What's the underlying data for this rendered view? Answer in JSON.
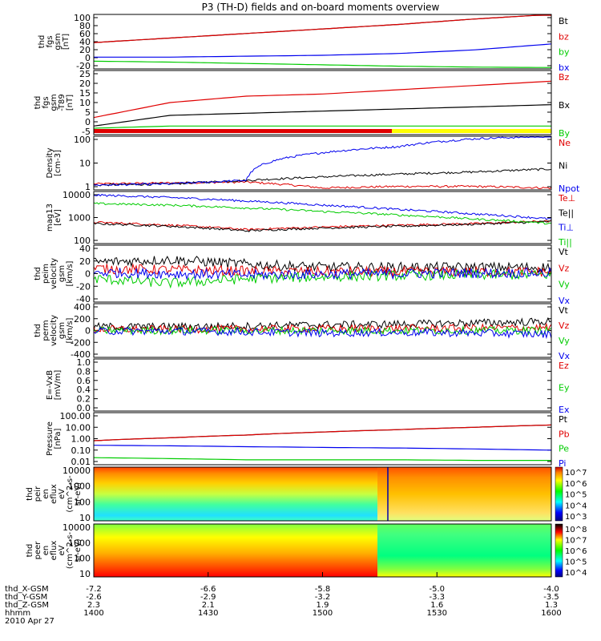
{
  "title": "P3 (TH-D) fields and on-board moments overview",
  "colors": {
    "black": "#000000",
    "red": "#e00000",
    "green": "#00cc00",
    "blue": "#0000ee",
    "yellow": "#ffff00"
  },
  "chart_data": [
    {
      "type": "line",
      "id": "fgs",
      "ylabel": [
        "thd",
        "fgs",
        "gsm",
        "[nT]"
      ],
      "yticks": [
        "100",
        "80",
        "60",
        "40",
        "20",
        "0",
        "-20"
      ],
      "ylim": [
        -20,
        100
      ],
      "series": [
        {
          "name": "Bt",
          "color": "black",
          "y": [
            38,
            48,
            58,
            68,
            78,
            90,
            100
          ]
        },
        {
          "name": "bz",
          "color": "red",
          "y": [
            38,
            48,
            58,
            68,
            78,
            90,
            100
          ]
        },
        {
          "name": "by",
          "color": "green",
          "y": [
            -3,
            -5,
            -8,
            -11,
            -14,
            -16,
            -17
          ]
        },
        {
          "name": "bx",
          "color": "blue",
          "y": [
            6,
            6,
            8,
            10,
            14,
            22,
            35
          ]
        }
      ]
    },
    {
      "type": "line",
      "id": "fgm_t89",
      "ylabel": [
        "thd",
        "fgs",
        "gsm",
        "-T89",
        "[nT]"
      ],
      "yticks": [
        "25",
        "20",
        "15",
        "10",
        "5",
        "0",
        "-5"
      ],
      "ylim": [
        -5,
        25
      ],
      "series": [
        {
          "name": "Bz",
          "color": "red",
          "y": [
            3,
            10,
            13,
            14,
            16,
            18,
            20
          ]
        },
        {
          "name": "Bx",
          "color": "black",
          "y": [
            -1,
            4,
            5,
            6,
            7,
            8,
            9
          ]
        },
        {
          "name": "By",
          "color": "green",
          "y": [
            -2,
            -1,
            -1,
            -1,
            -1,
            -1,
            -1
          ]
        }
      ],
      "flag_bar": [
        "red",
        "yellow"
      ]
    },
    {
      "type": "line",
      "id": "density",
      "log": true,
      "ylabel": [
        "Density",
        "[cm-3]"
      ],
      "yticks": [
        "100",
        "10",
        "1"
      ],
      "ylim": [
        0.4,
        200
      ],
      "series": [
        {
          "name": "Ne",
          "color": "red",
          "y": [
            0.8,
            0.9,
            1.0,
            0.5,
            0.6,
            0.6,
            0.5
          ]
        },
        {
          "name": "Ni",
          "color": "black",
          "y": [
            0.7,
            0.8,
            1.2,
            1.8,
            2.5,
            3.2,
            4.5
          ]
        },
        {
          "name": "Npot",
          "color": "blue",
          "y": [
            0.7,
            0.8,
            1.2,
            30,
            60,
            150,
            200
          ]
        }
      ]
    },
    {
      "type": "line",
      "id": "temp",
      "log": true,
      "ylabel": [
        "mag13",
        "[eV]"
      ],
      "yticks": [
        "10000",
        "1000",
        "100"
      ],
      "ylim": [
        30,
        12000
      ],
      "series": [
        {
          "name": "Te⊥",
          "color": "red",
          "y": [
            350,
            250,
            150,
            200,
            250,
            300,
            400
          ]
        },
        {
          "name": "Te||",
          "color": "black",
          "y": [
            300,
            220,
            130,
            180,
            220,
            280,
            380
          ]
        },
        {
          "name": "Ti⊥",
          "color": "blue",
          "y": [
            8000,
            6000,
            4000,
            2500,
            1500,
            900,
            500
          ]
        },
        {
          "name": "Ti||",
          "color": "green",
          "y": [
            3000,
            2500,
            1800,
            1200,
            800,
            500,
            300
          ]
        }
      ]
    },
    {
      "type": "line",
      "id": "peim_vel",
      "ylabel": [
        "thd",
        "peim",
        "velocity",
        "gsm",
        "[km/s]"
      ],
      "yticks": [
        "40",
        "20",
        "0",
        "-20",
        "-40"
      ],
      "ylim": [
        -45,
        45
      ],
      "series": [
        {
          "name": "Vt",
          "color": "black",
          "y": [
            18,
            22,
            15,
            10,
            10,
            10,
            10
          ]
        },
        {
          "name": "Vz",
          "color": "red",
          "y": [
            8,
            6,
            4,
            3,
            3,
            3,
            3
          ]
        },
        {
          "name": "Vy",
          "color": "green",
          "y": [
            -8,
            -15,
            -8,
            -5,
            -3,
            -2,
            -2
          ]
        },
        {
          "name": "Vx",
          "color": "blue",
          "y": [
            2,
            0,
            -2,
            -1,
            0,
            1,
            1
          ]
        }
      ]
    },
    {
      "type": "line",
      "id": "perm_vel",
      "ylabel": [
        "thd",
        "perm",
        "velocity",
        "gsm",
        "[km/s]"
      ],
      "yticks": [
        "400",
        "200",
        "0",
        "-200",
        "-400"
      ],
      "ylim": [
        -420,
        420
      ],
      "series": [
        {
          "name": "Vt",
          "color": "black",
          "y": [
            60,
            60,
            70,
            90,
            100,
            120,
            140
          ]
        },
        {
          "name": "Vz",
          "color": "red",
          "y": [
            20,
            20,
            25,
            30,
            35,
            40,
            45
          ]
        },
        {
          "name": "Vy",
          "color": "green",
          "y": [
            0,
            0,
            0,
            0,
            0,
            0,
            0
          ]
        },
        {
          "name": "Vx",
          "color": "blue",
          "y": [
            -10,
            -10,
            -20,
            -40,
            -30,
            -40,
            -60
          ]
        }
      ]
    },
    {
      "type": "line",
      "id": "efield",
      "ylabel": [
        "E=-VxB",
        "[mV/m]"
      ],
      "yticks": [
        "1.0",
        "0.8",
        "0.6",
        "0.4",
        "0.2",
        "0.0"
      ],
      "ylim": [
        0,
        1
      ],
      "series": [
        {
          "name": "Ez",
          "color": "red",
          "y": []
        },
        {
          "name": "Ey",
          "color": "green",
          "y": []
        },
        {
          "name": "Ex",
          "color": "blue",
          "y": []
        }
      ]
    },
    {
      "type": "line",
      "id": "pressure",
      "log": true,
      "ylabel": [
        "Pressure",
        "[nPa]"
      ],
      "yticks": [
        "100.00",
        "10.00",
        "1.00",
        "0.10",
        "0.01"
      ],
      "ylim": [
        0.008,
        130
      ],
      "series": [
        {
          "name": "Pt",
          "color": "black",
          "y": [
            0.7,
            1.2,
            2.0,
            3.5,
            5.5,
            8.5,
            13
          ]
        },
        {
          "name": "Pb",
          "color": "red",
          "y": [
            0.7,
            1.2,
            2.0,
            3.5,
            5.5,
            8.5,
            13
          ]
        },
        {
          "name": "Pe",
          "color": "green",
          "y": [
            0.03,
            0.025,
            0.02,
            0.02,
            0.02,
            0.018,
            0.018
          ]
        },
        {
          "name": "Pi",
          "color": "blue",
          "y": [
            0.3,
            0.27,
            0.23,
            0.2,
            0.18,
            0.15,
            0.12
          ]
        }
      ]
    },
    {
      "type": "heatmap",
      "id": "peir_en",
      "ylabel": [
        "thd",
        "peir",
        "en",
        "eflux",
        "eV",
        "(cm^2-s-",
        "sr-eV)"
      ],
      "yticks": [
        "10000",
        "1000",
        "100",
        "10"
      ],
      "colorbar": {
        "labels": [
          "10^7",
          "10^6",
          "10^5",
          "10^4",
          "10^3"
        ]
      }
    },
    {
      "type": "heatmap",
      "id": "peer_en",
      "ylabel": [
        "thd",
        "peer",
        "en",
        "eflux",
        "eV",
        "(cm^2-s-",
        "sr-eV)"
      ],
      "yticks": [
        "10000",
        "1000",
        "100",
        "10"
      ],
      "colorbar": {
        "labels": [
          "10^8",
          "10^7",
          "10^6",
          "10^5",
          "10^4"
        ]
      }
    }
  ],
  "xaxis": {
    "rows": [
      {
        "label": "thd_X-GSM",
        "values": [
          "-7.2",
          "-6.6",
          "-5.8",
          "-5.0",
          "-4.0"
        ]
      },
      {
        "label": "thd_Y-GSM",
        "values": [
          "-2.6",
          "-2.9",
          "-3.2",
          "-3.3",
          "-3.5"
        ]
      },
      {
        "label": "thd_Z-GSM",
        "values": [
          "2.3",
          "2.1",
          "1.9",
          "1.6",
          "1.3"
        ]
      },
      {
        "label": "hhmm",
        "values": [
          "1400",
          "1430",
          "1500",
          "1530",
          "1600"
        ]
      }
    ],
    "date": "2010 Apr 27"
  }
}
